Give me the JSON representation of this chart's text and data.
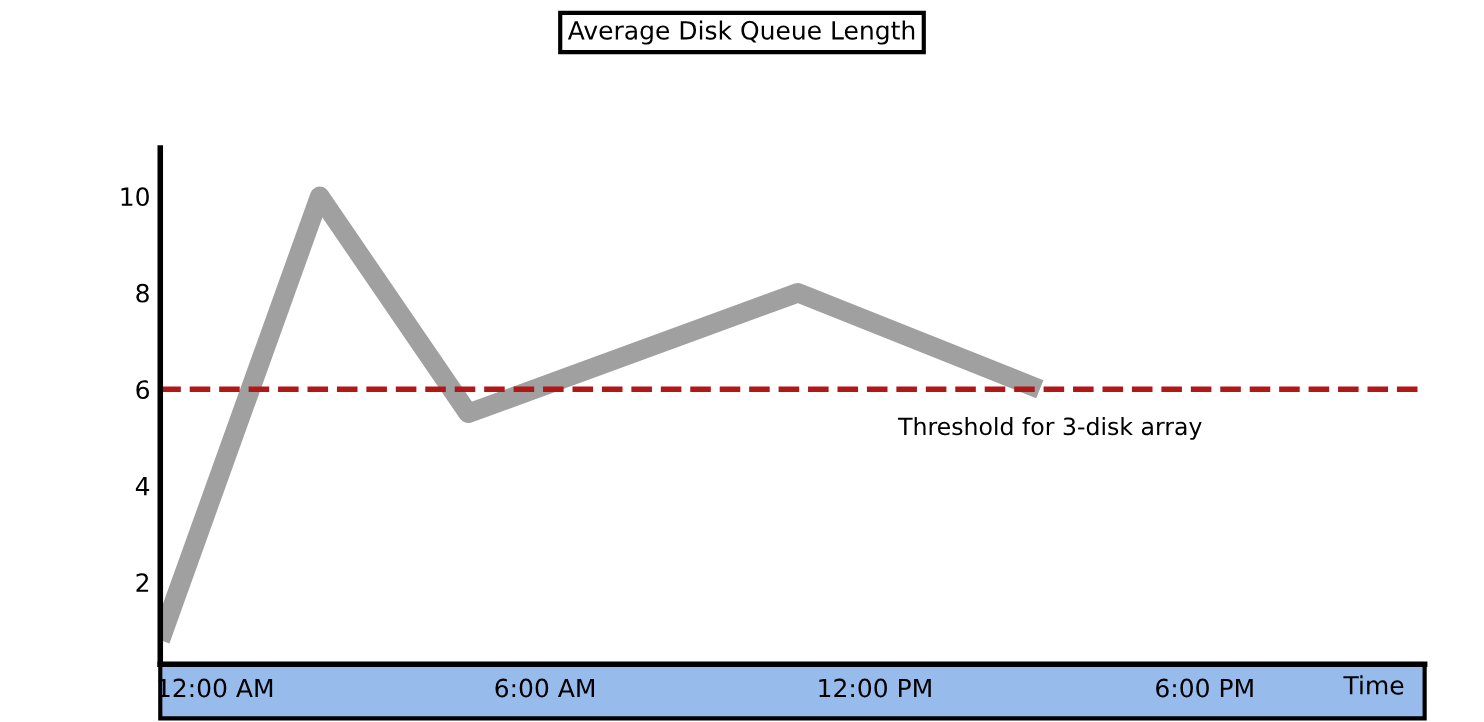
{
  "chart_data": {
    "type": "line",
    "title": "Average Disk Queue Length",
    "xlabel": "Time",
    "x": [
      -1,
      1.9,
      4.6,
      10.6,
      15
    ],
    "series": [
      {
        "color": "#a0a0a0",
        "values": [
          0.8,
          10,
          5.5,
          8,
          6
        ]
      }
    ],
    "xlim": [
      -1,
      22
    ],
    "xticks": [
      {
        "value": 0,
        "label": "12:00 AM"
      },
      {
        "value": 6,
        "label": "6:00 AM"
      },
      {
        "value": 12,
        "label": "12:00 PM"
      },
      {
        "value": 18,
        "label": "6:00 PM"
      }
    ],
    "ylim": [
      0.3,
      11
    ],
    "yticks": [
      2,
      4,
      6,
      8,
      10
    ],
    "ref_lines": [
      {
        "axis": "y",
        "value": 6,
        "label": "Threshold for 3-disk array",
        "color": "#b01818",
        "line_style": "dashed"
      }
    ],
    "grid": false,
    "legend": false,
    "marker": "none",
    "line_style": "solid"
  }
}
